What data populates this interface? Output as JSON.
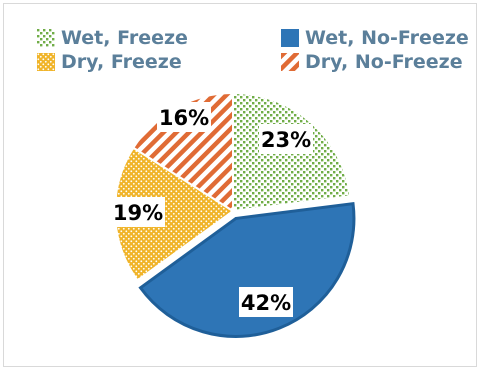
{
  "chart_data": {
    "type": "pie",
    "legend_position": "top",
    "slices": [
      {
        "name": "Wet, Freeze",
        "value": 23,
        "label": "23%",
        "color": "#70ad47",
        "pattern": "dots-green"
      },
      {
        "name": "Wet, No-Freeze",
        "value": 42,
        "label": "42%",
        "color": "#2e75b6",
        "pattern": "solid-blue"
      },
      {
        "name": "Dry, Freeze",
        "value": 19,
        "label": "19%",
        "color": "#f0b429",
        "pattern": "dots-yellow"
      },
      {
        "name": "Dry, No-Freeze",
        "value": 16,
        "label": "16%",
        "color": "#e06b35",
        "pattern": "stripes-orange"
      }
    ],
    "legend": [
      "Wet, Freeze",
      "Wet, No-Freeze",
      "Dry, Freeze",
      "Dry, No-Freeze"
    ]
  }
}
